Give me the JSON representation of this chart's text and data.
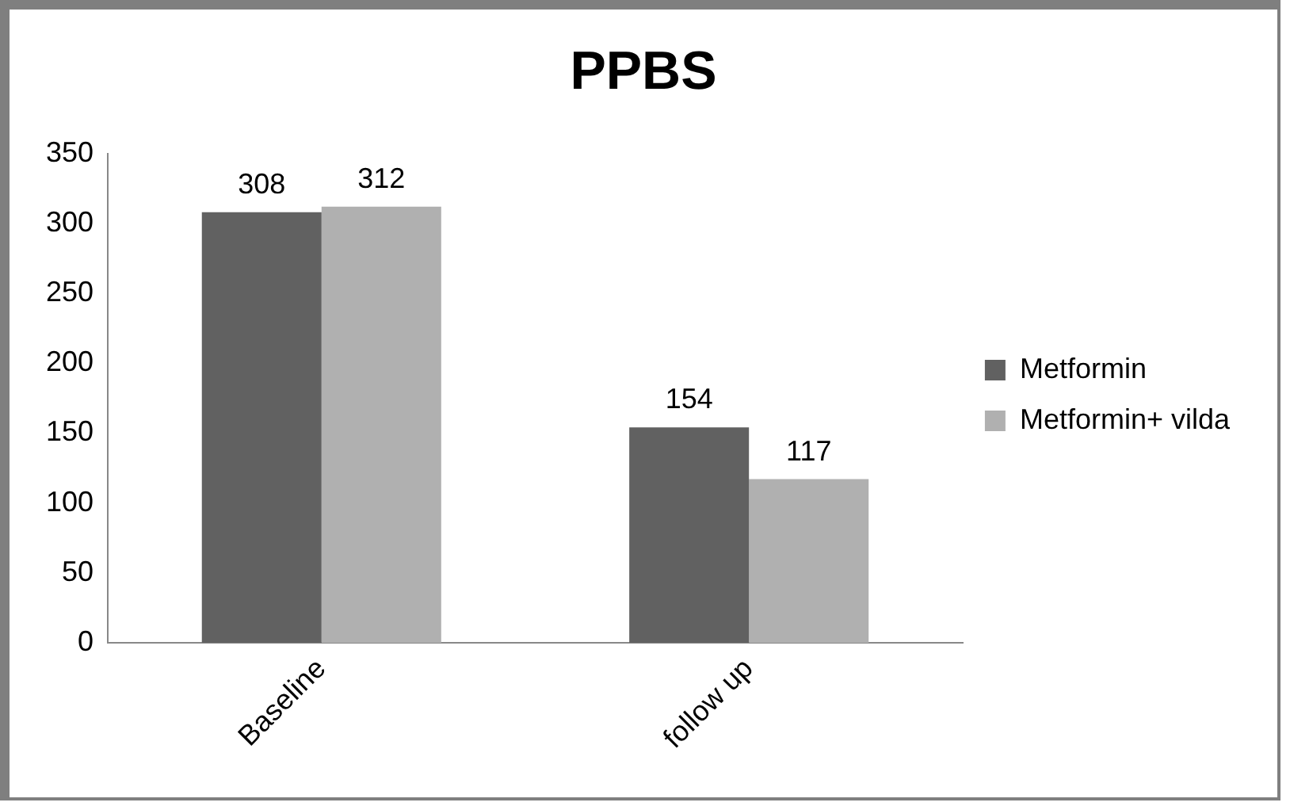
{
  "chart_data": {
    "type": "bar",
    "title": "PPBS",
    "categories": [
      "Baseline",
      "follow up"
    ],
    "series": [
      {
        "name": "Metformin",
        "color": "#616161",
        "values": [
          308,
          154
        ]
      },
      {
        "name": "Metformin+ vilda",
        "color": "#b0b0b0",
        "values": [
          312,
          117
        ]
      }
    ],
    "ylim": [
      0,
      350
    ],
    "yticks": [
      0,
      50,
      100,
      150,
      200,
      250,
      300,
      350
    ],
    "grid": false,
    "legend": "right",
    "data_labels": true
  }
}
